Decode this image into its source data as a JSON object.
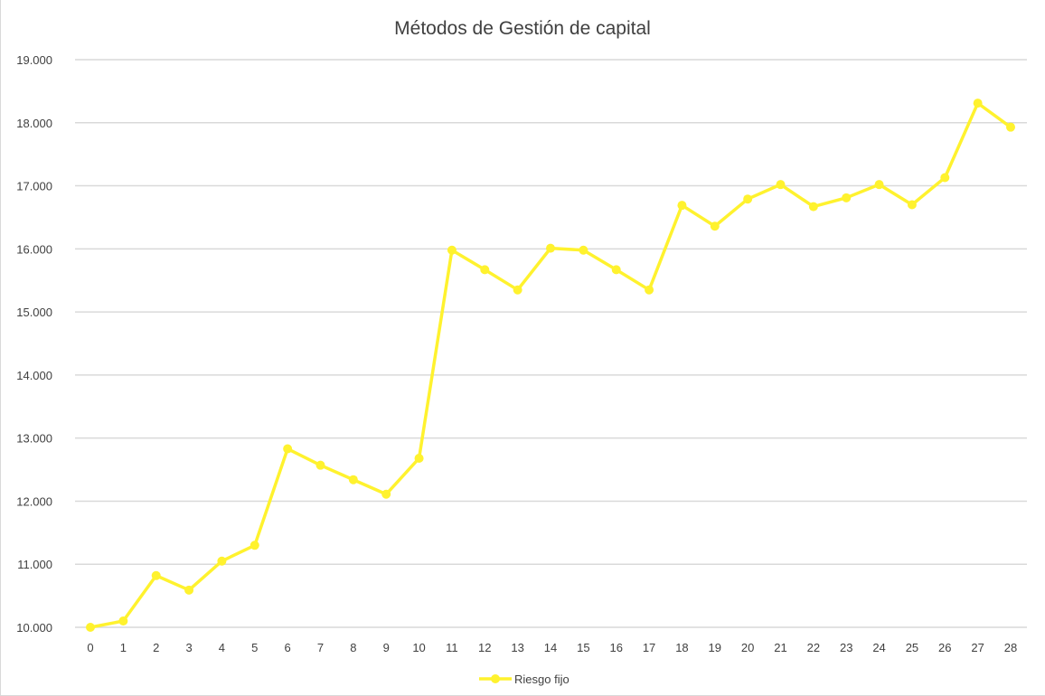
{
  "chart_data": {
    "type": "line",
    "title": "Métodos de Gestión de capital",
    "xlabel": "",
    "ylabel": "",
    "x": [
      0,
      1,
      2,
      3,
      4,
      5,
      6,
      7,
      8,
      9,
      10,
      11,
      12,
      13,
      14,
      15,
      16,
      17,
      18,
      19,
      20,
      21,
      22,
      23,
      24,
      25,
      26,
      27,
      28
    ],
    "series": [
      {
        "name": "Riesgo fijo",
        "color": "#FFF22E",
        "values": [
          10000,
          10100,
          10820,
          10590,
          11050,
          11300,
          12830,
          12570,
          12340,
          12110,
          12680,
          15980,
          15670,
          15350,
          16010,
          15980,
          15670,
          15350,
          16690,
          16360,
          16790,
          17020,
          16670,
          16810,
          17020,
          16700,
          17130,
          18310,
          17930
        ]
      }
    ],
    "ylim": [
      10000,
      19000
    ],
    "yticks": [
      10000,
      11000,
      12000,
      13000,
      14000,
      15000,
      16000,
      17000,
      18000,
      19000
    ],
    "ytick_labels": [
      "10.000",
      "11.000",
      "12.000",
      "13.000",
      "14.000",
      "15.000",
      "16.000",
      "17.000",
      "18.000",
      "19.000"
    ],
    "grid": true,
    "gridline_color": "#d9d9d9",
    "legend_position": "bottom"
  }
}
